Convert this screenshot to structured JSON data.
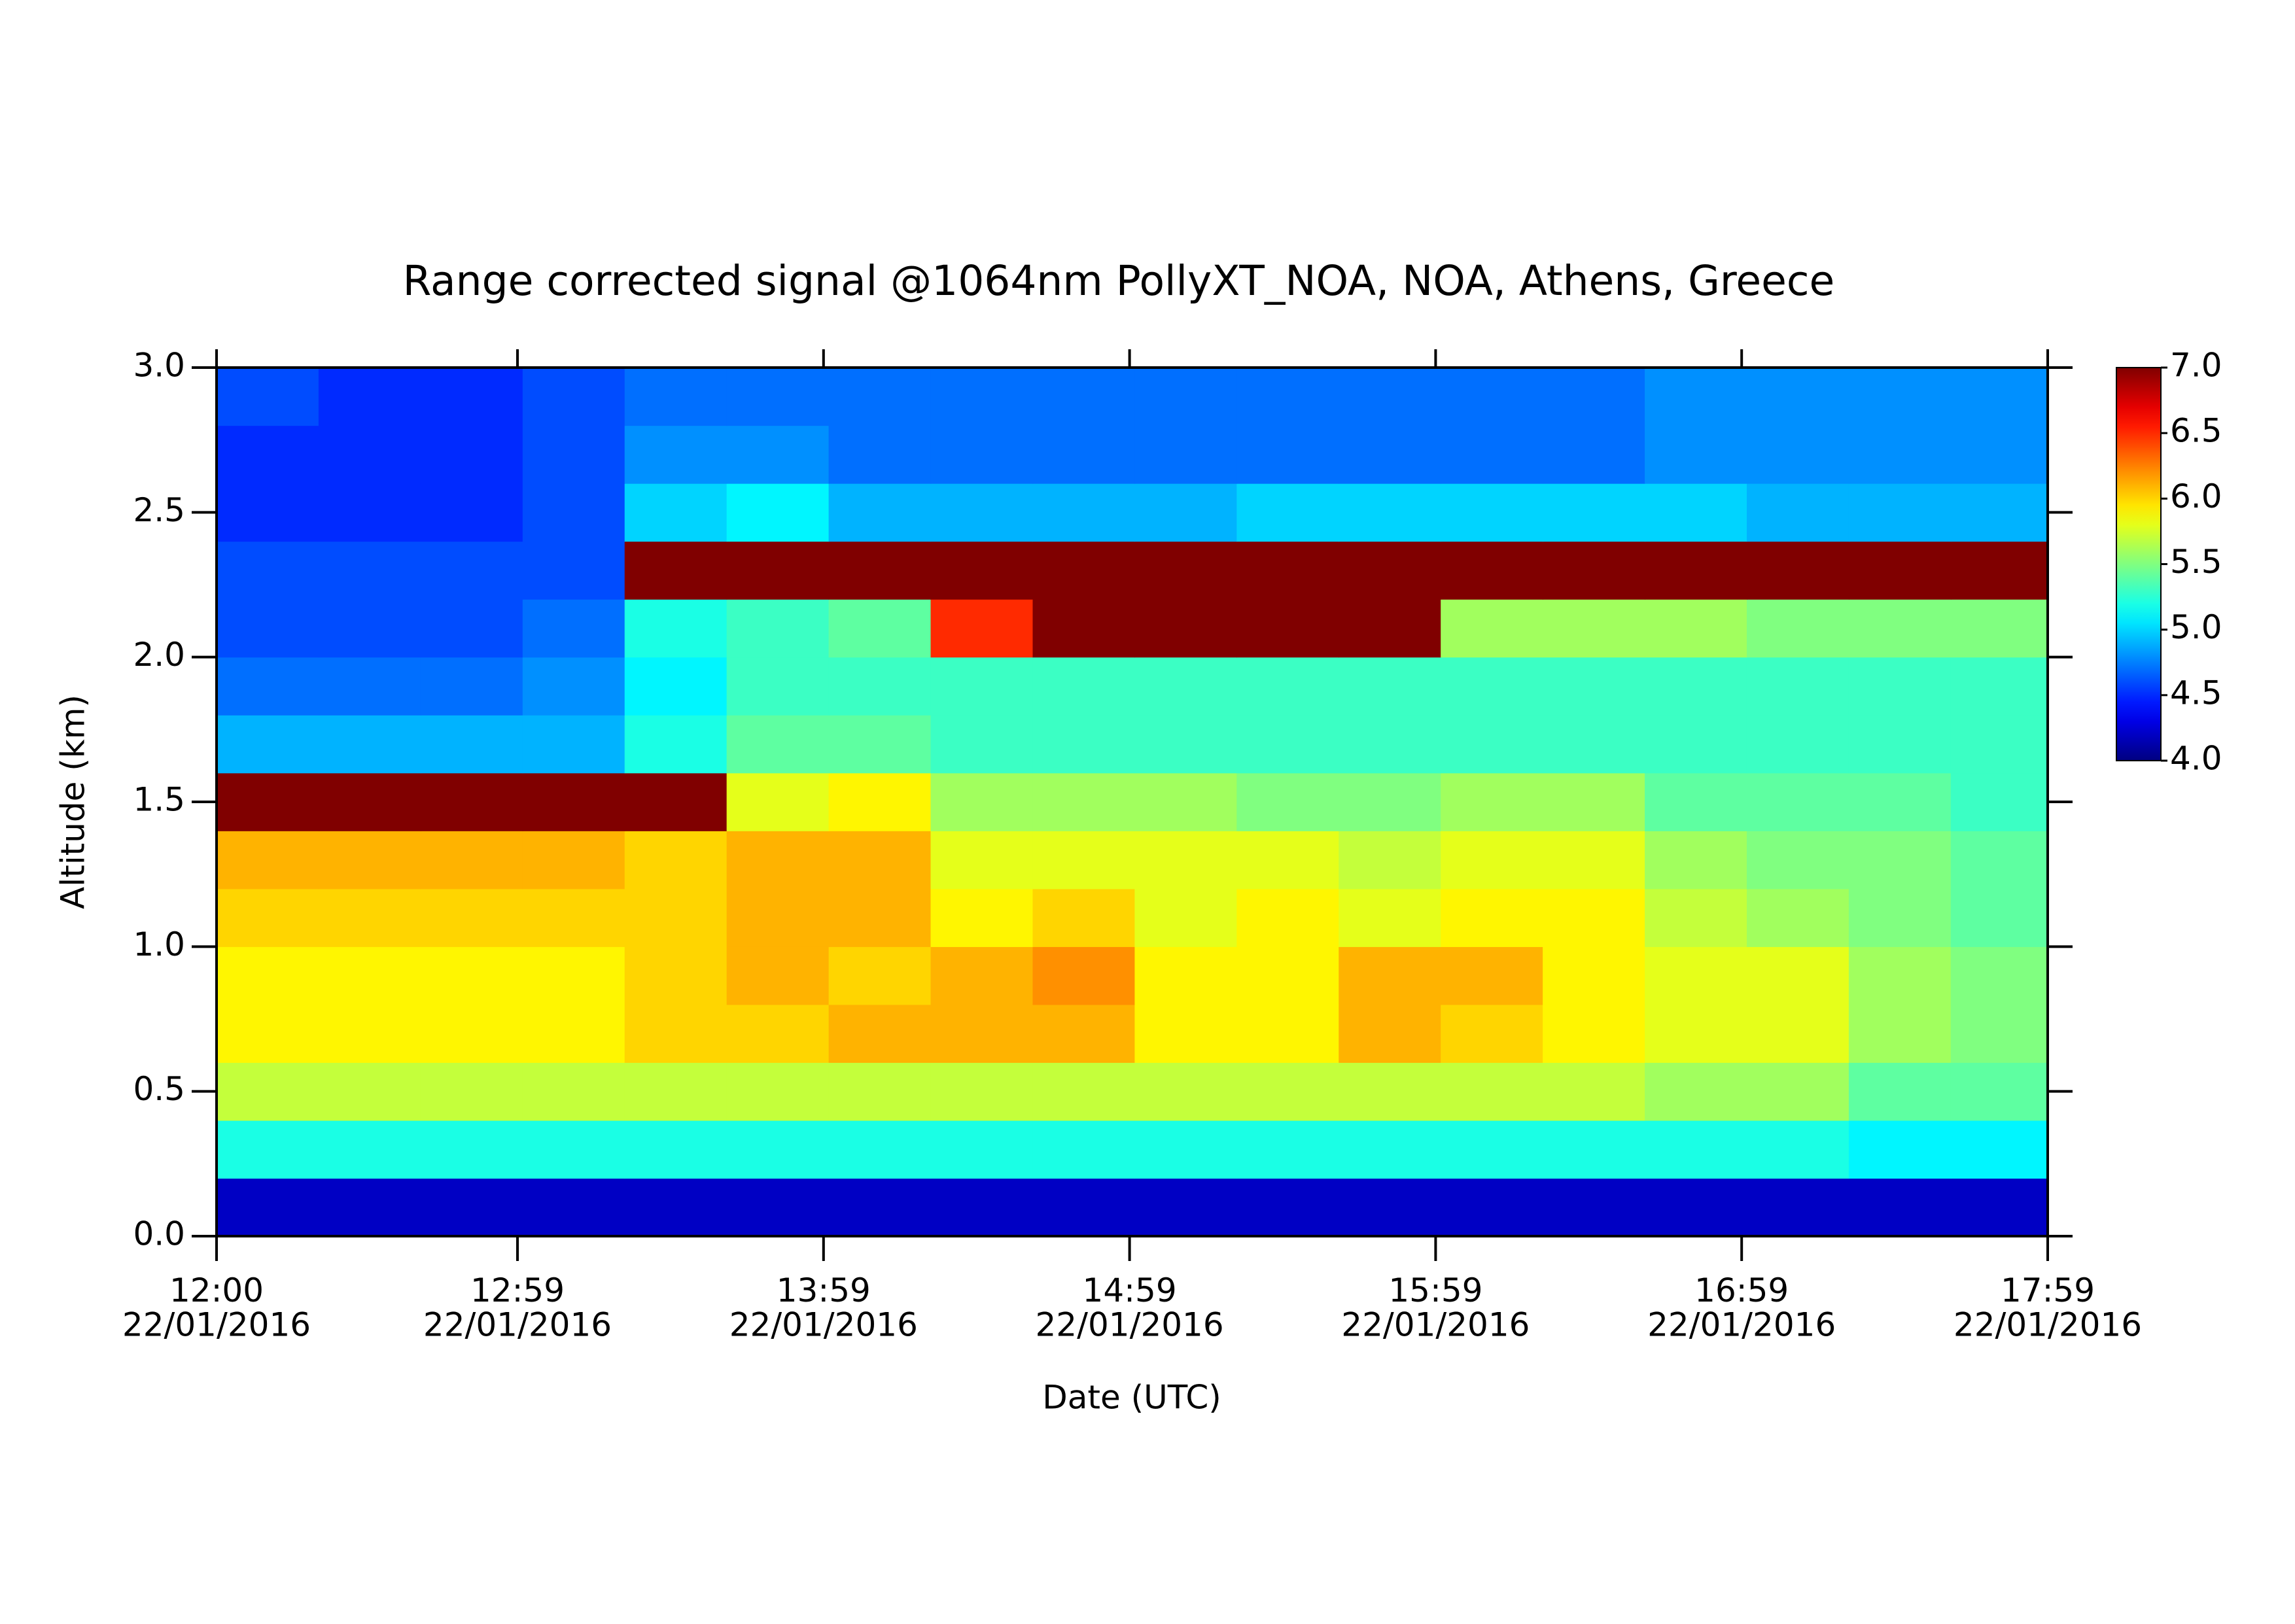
{
  "chart_data": {
    "type": "heatmap",
    "title": "Range corrected signal @1064nm  PollyXT_NOA, NOA, Athens, Greece",
    "x_label": "Date (UTC)",
    "y_label": "Altitude (km)",
    "colormap": "jet",
    "x": [
      "2016-01-22T12:00",
      "2016-01-22T12:20",
      "2016-01-22T12:40",
      "2016-01-22T13:00",
      "2016-01-22T13:20",
      "2016-01-22T13:40",
      "2016-01-22T14:00",
      "2016-01-22T14:20",
      "2016-01-22T14:40",
      "2016-01-22T15:00",
      "2016-01-22T15:20",
      "2016-01-22T15:40",
      "2016-01-22T16:00",
      "2016-01-22T16:20",
      "2016-01-22T16:40",
      "2016-01-22T17:00",
      "2016-01-22T17:20",
      "2016-01-22T17:40"
    ],
    "y": [
      0.0,
      0.2,
      0.4,
      0.6,
      0.8,
      1.0,
      1.2,
      1.4,
      1.6,
      1.8,
      2.0,
      2.2,
      2.4,
      2.6,
      2.8
    ],
    "z": [
      [
        4.2,
        4.2,
        4.2,
        4.2,
        4.2,
        4.2,
        4.2,
        4.2,
        4.2,
        4.2,
        4.2,
        4.2,
        4.2,
        4.2,
        4.2,
        4.2,
        4.2,
        4.2
      ],
      [
        5.2,
        5.2,
        5.2,
        5.2,
        5.2,
        5.2,
        5.2,
        5.2,
        5.2,
        5.2,
        5.2,
        5.2,
        5.2,
        5.2,
        5.2,
        5.2,
        5.1,
        5.1
      ],
      [
        5.7,
        5.7,
        5.7,
        5.7,
        5.7,
        5.7,
        5.7,
        5.7,
        5.7,
        5.7,
        5.7,
        5.7,
        5.7,
        5.7,
        5.6,
        5.6,
        5.4,
        5.4
      ],
      [
        5.9,
        5.9,
        5.9,
        5.9,
        6.0,
        6.0,
        6.1,
        6.1,
        6.1,
        5.9,
        5.9,
        6.1,
        6.0,
        5.9,
        5.8,
        5.8,
        5.6,
        5.5
      ],
      [
        5.9,
        5.9,
        5.9,
        5.9,
        6.0,
        6.1,
        6.0,
        6.1,
        6.2,
        5.9,
        5.9,
        6.1,
        6.1,
        5.9,
        5.8,
        5.8,
        5.6,
        5.5
      ],
      [
        6.0,
        6.0,
        6.0,
        6.0,
        6.0,
        6.1,
        6.1,
        5.9,
        6.0,
        5.8,
        5.9,
        5.8,
        5.9,
        5.9,
        5.7,
        5.6,
        5.5,
        5.4
      ],
      [
        6.1,
        6.1,
        6.1,
        6.1,
        6.0,
        6.1,
        6.1,
        5.8,
        5.8,
        5.8,
        5.8,
        5.7,
        5.8,
        5.8,
        5.6,
        5.5,
        5.5,
        5.4
      ],
      [
        7.0,
        7.0,
        7.0,
        7.0,
        7.0,
        5.8,
        5.9,
        5.6,
        5.6,
        5.6,
        5.5,
        5.5,
        5.6,
        5.6,
        5.4,
        5.4,
        5.4,
        5.3
      ],
      [
        4.9,
        4.9,
        4.9,
        4.9,
        5.2,
        5.4,
        5.4,
        5.3,
        5.3,
        5.3,
        5.3,
        5.3,
        5.3,
        5.3,
        5.3,
        5.3,
        5.3,
        5.3
      ],
      [
        4.7,
        4.7,
        4.7,
        4.8,
        5.1,
        5.3,
        5.3,
        5.3,
        5.3,
        5.3,
        5.3,
        5.3,
        5.3,
        5.3,
        5.3,
        5.3,
        5.3,
        5.3
      ],
      [
        4.6,
        4.6,
        4.6,
        4.7,
        5.2,
        5.3,
        5.4,
        6.5,
        7.0,
        7.0,
        7.0,
        7.0,
        5.6,
        5.6,
        5.6,
        5.5,
        5.5,
        5.5
      ],
      [
        4.6,
        4.6,
        4.6,
        4.6,
        7.0,
        7.0,
        7.0,
        7.0,
        7.0,
        7.0,
        7.0,
        7.0,
        7.0,
        7.0,
        7.0,
        7.0,
        7.0,
        7.0
      ],
      [
        4.5,
        4.5,
        4.5,
        4.6,
        5.0,
        5.1,
        4.9,
        4.9,
        4.9,
        4.9,
        5.0,
        5.0,
        5.0,
        5.0,
        5.0,
        4.9,
        4.9,
        4.9
      ],
      [
        4.5,
        4.5,
        4.5,
        4.6,
        4.8,
        4.8,
        4.7,
        4.7,
        4.7,
        4.7,
        4.7,
        4.7,
        4.7,
        4.7,
        4.8,
        4.8,
        4.8,
        4.8
      ],
      [
        4.6,
        4.5,
        4.5,
        4.6,
        4.7,
        4.7,
        4.7,
        4.7,
        4.7,
        4.7,
        4.7,
        4.7,
        4.7,
        4.7,
        4.8,
        4.8,
        4.8,
        4.8
      ]
    ],
    "xlim": [
      "2016-01-22T12:00",
      "2016-01-22T17:59"
    ],
    "xticks": [
      {
        "value": "2016-01-22T12:00",
        "label": "12:00\n22/01/2016"
      },
      {
        "value": "2016-01-22T12:59",
        "label": "12:59\n22/01/2016"
      },
      {
        "value": "2016-01-22T13:59",
        "label": "13:59\n22/01/2016"
      },
      {
        "value": "2016-01-22T14:59",
        "label": "14:59\n22/01/2016"
      },
      {
        "value": "2016-01-22T15:59",
        "label": "15:59\n22/01/2016"
      },
      {
        "value": "2016-01-22T16:59",
        "label": "16:59\n22/01/2016"
      },
      {
        "value": "2016-01-22T17:59",
        "label": "17:59\n22/01/2016"
      }
    ],
    "ylim": [
      0,
      3
    ],
    "yticks": [
      {
        "value": 0,
        "label": "0.0"
      },
      {
        "value": 0.5,
        "label": "0.5"
      },
      {
        "value": 1,
        "label": "1.0"
      },
      {
        "value": 1.5,
        "label": "1.5"
      },
      {
        "value": 2,
        "label": "2.0"
      },
      {
        "value": 2.5,
        "label": "2.5"
      },
      {
        "value": 3,
        "label": "3.0"
      }
    ],
    "zlim": [
      4,
      7
    ],
    "zticks": [
      {
        "value": 4,
        "label": "4.0"
      },
      {
        "value": 4.5,
        "label": "4.5"
      },
      {
        "value": 5,
        "label": "5.0"
      },
      {
        "value": 5.5,
        "label": "5.5"
      },
      {
        "value": 6,
        "label": "6.0"
      },
      {
        "value": 6.5,
        "label": "6.5"
      },
      {
        "value": 7,
        "label": "7.0"
      }
    ]
  }
}
